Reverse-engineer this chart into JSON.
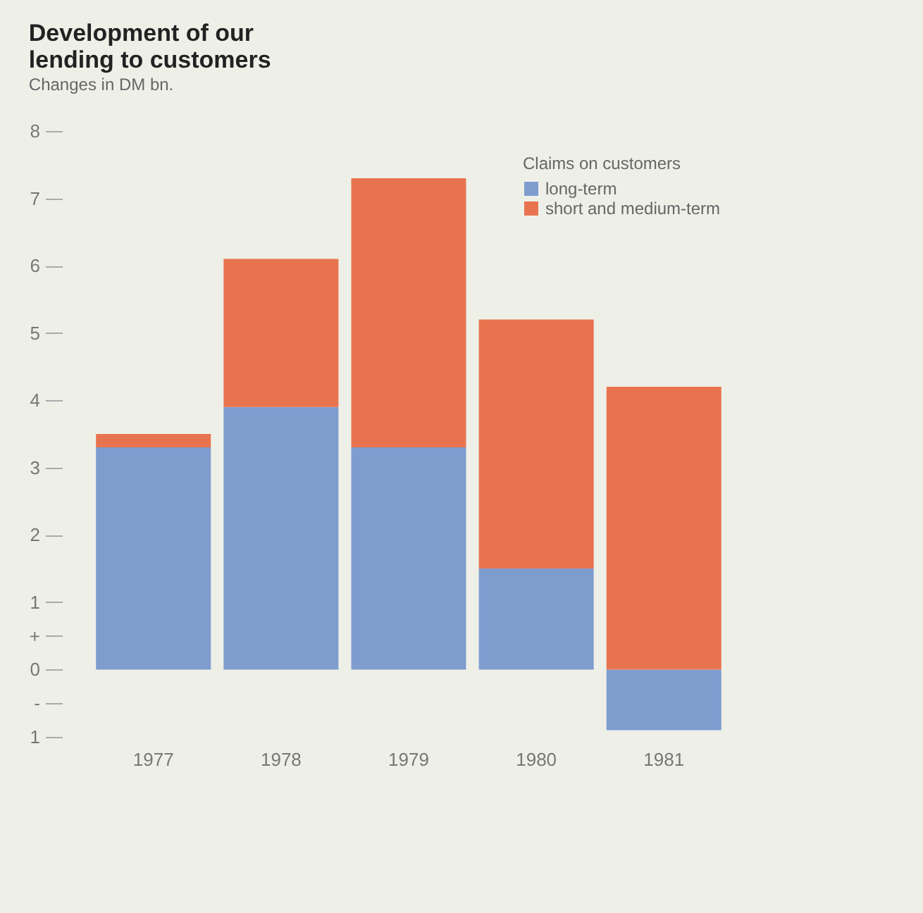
{
  "chart_data": {
    "type": "bar",
    "title": "Development of our lending to customers",
    "subtitle": "Changes in DM bn.",
    "legend_title": "Claims on customers",
    "categories": [
      "1977",
      "1978",
      "1979",
      "1980",
      "1981"
    ],
    "stacked": true,
    "series": [
      {
        "name": "long-term",
        "color": "#7f9ccf",
        "values": [
          3.3,
          3.9,
          3.3,
          1.5,
          -0.9
        ]
      },
      {
        "name": "short and medium-term",
        "color": "#e8744f",
        "values": [
          0.2,
          2.2,
          4.0,
          3.7,
          4.2
        ]
      }
    ],
    "ylim": [
      -1,
      8
    ],
    "yticks": [
      {
        "value": -1,
        "label": "1"
      },
      {
        "value": -0.5,
        "label": "-"
      },
      0,
      {
        "value": 0.5,
        "label": "+"
      },
      1,
      2,
      3,
      4,
      5,
      6,
      7,
      8
    ],
    "grid": false,
    "legend": "top right"
  }
}
